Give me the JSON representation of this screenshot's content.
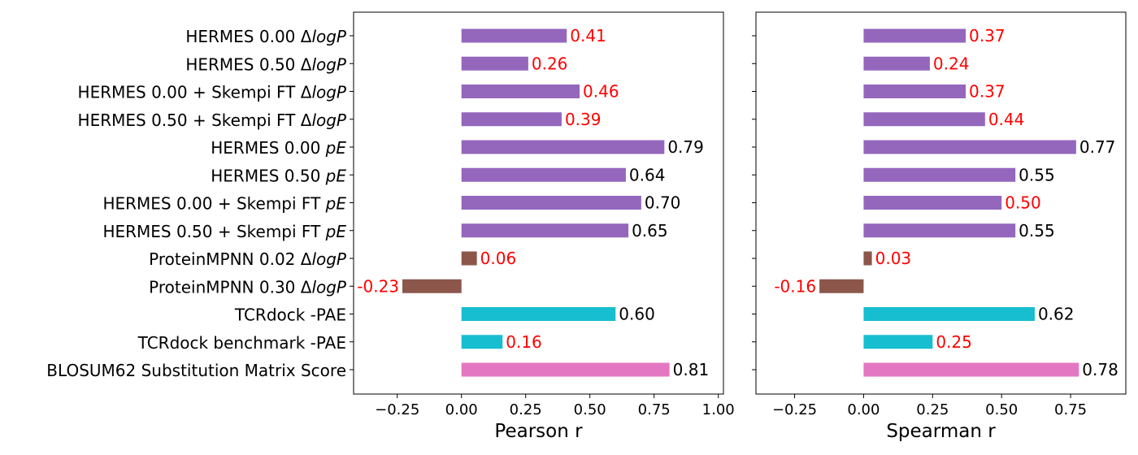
{
  "chart_data": [
    {
      "type": "bar",
      "orientation": "horizontal",
      "xlabel": "Pearson r",
      "ylabel": "",
      "xlim": [
        -0.42,
        1.02
      ],
      "xticks": [
        -0.25,
        0.0,
        0.25,
        0.5,
        0.75,
        1.0
      ],
      "xtick_labels": [
        "−0.25",
        "0.00",
        "0.25",
        "0.50",
        "0.75",
        "1.00"
      ],
      "grid": false,
      "legend": "none",
      "categories": [
        {
          "label": "HERMES 0.00 ΔlogP",
          "parts": [
            {
              "t": "HERMES 0.00 Δ"
            },
            {
              "t": "logP",
              "i": true
            }
          ]
        },
        {
          "label": "HERMES 0.50 ΔlogP",
          "parts": [
            {
              "t": "HERMES 0.50 Δ"
            },
            {
              "t": "logP",
              "i": true
            }
          ]
        },
        {
          "label": "HERMES 0.00 + Skempi FT ΔlogP",
          "parts": [
            {
              "t": "HERMES 0.00 + Skempi FT Δ"
            },
            {
              "t": "logP",
              "i": true
            }
          ]
        },
        {
          "label": "HERMES 0.50 + Skempi FT ΔlogP",
          "parts": [
            {
              "t": "HERMES 0.50 + Skempi FT Δ"
            },
            {
              "t": "logP",
              "i": true
            }
          ]
        },
        {
          "label": "HERMES 0.00 pE",
          "parts": [
            {
              "t": "HERMES 0.00 "
            },
            {
              "t": "pE",
              "i": true
            }
          ]
        },
        {
          "label": "HERMES 0.50 pE",
          "parts": [
            {
              "t": "HERMES 0.50 "
            },
            {
              "t": "pE",
              "i": true
            }
          ]
        },
        {
          "label": "HERMES 0.00 + Skempi FT pE",
          "parts": [
            {
              "t": "HERMES 0.00 + Skempi FT "
            },
            {
              "t": "pE",
              "i": true
            }
          ]
        },
        {
          "label": "HERMES 0.50 + Skempi FT pE",
          "parts": [
            {
              "t": "HERMES 0.50 + Skempi FT "
            },
            {
              "t": "pE",
              "i": true
            }
          ]
        },
        {
          "label": "ProteinMPNN 0.02 ΔlogP",
          "parts": [
            {
              "t": "ProteinMPNN 0.02 Δ"
            },
            {
              "t": "logP",
              "i": true
            }
          ]
        },
        {
          "label": "ProteinMPNN 0.30 ΔlogP",
          "parts": [
            {
              "t": "ProteinMPNN 0.30 Δ"
            },
            {
              "t": "logP",
              "i": true
            }
          ]
        },
        {
          "label": "TCRdock -PAE",
          "parts": [
            {
              "t": "TCRdock -PAE"
            }
          ]
        },
        {
          "label": "TCRdock benchmark -PAE",
          "parts": [
            {
              "t": "TCRdock benchmark -PAE"
            }
          ]
        },
        {
          "label": "BLOSUM62 Substitution Matrix Score",
          "parts": [
            {
              "t": "BLOSUM62 Substitution Matrix Score"
            }
          ]
        }
      ],
      "values": [
        0.41,
        0.26,
        0.46,
        0.39,
        0.79,
        0.64,
        0.7,
        0.65,
        0.06,
        -0.23,
        0.6,
        0.16,
        0.81
      ],
      "value_labels": [
        "0.41",
        "0.26",
        "0.46",
        "0.39",
        "0.79",
        "0.64",
        "0.70",
        "0.65",
        "0.06",
        "-0.23",
        "0.60",
        "0.16",
        "0.81"
      ],
      "label_color": [
        "red",
        "red",
        "red",
        "red",
        "black",
        "black",
        "black",
        "black",
        "red",
        "red",
        "black",
        "red",
        "black"
      ],
      "bar_color": [
        "#9467bd",
        "#9467bd",
        "#9467bd",
        "#9467bd",
        "#9467bd",
        "#9467bd",
        "#9467bd",
        "#9467bd",
        "#8c564b",
        "#8c564b",
        "#17becf",
        "#17becf",
        "#e377c2"
      ]
    },
    {
      "type": "bar",
      "orientation": "horizontal",
      "xlabel": "Spearman r",
      "ylabel": "",
      "xlim": [
        -0.39,
        0.95
      ],
      "xticks": [
        -0.25,
        0.0,
        0.25,
        0.5,
        0.75
      ],
      "xtick_labels": [
        "−0.25",
        "0.00",
        "0.25",
        "0.50",
        "0.75"
      ],
      "grid": false,
      "legend": "none",
      "values": [
        0.37,
        0.24,
        0.37,
        0.44,
        0.77,
        0.55,
        0.5,
        0.55,
        0.03,
        -0.16,
        0.62,
        0.25,
        0.78
      ],
      "value_labels": [
        "0.37",
        "0.24",
        "0.37",
        "0.44",
        "0.77",
        "0.55",
        "0.50",
        "0.55",
        "0.03",
        "-0.16",
        "0.62",
        "0.25",
        "0.78"
      ],
      "label_color": [
        "red",
        "red",
        "red",
        "red",
        "black",
        "black",
        "red",
        "black",
        "red",
        "red",
        "black",
        "red",
        "black"
      ],
      "bar_color": [
        "#9467bd",
        "#9467bd",
        "#9467bd",
        "#9467bd",
        "#9467bd",
        "#9467bd",
        "#9467bd",
        "#9467bd",
        "#8c564b",
        "#8c564b",
        "#17becf",
        "#17becf",
        "#e377c2"
      ]
    }
  ]
}
